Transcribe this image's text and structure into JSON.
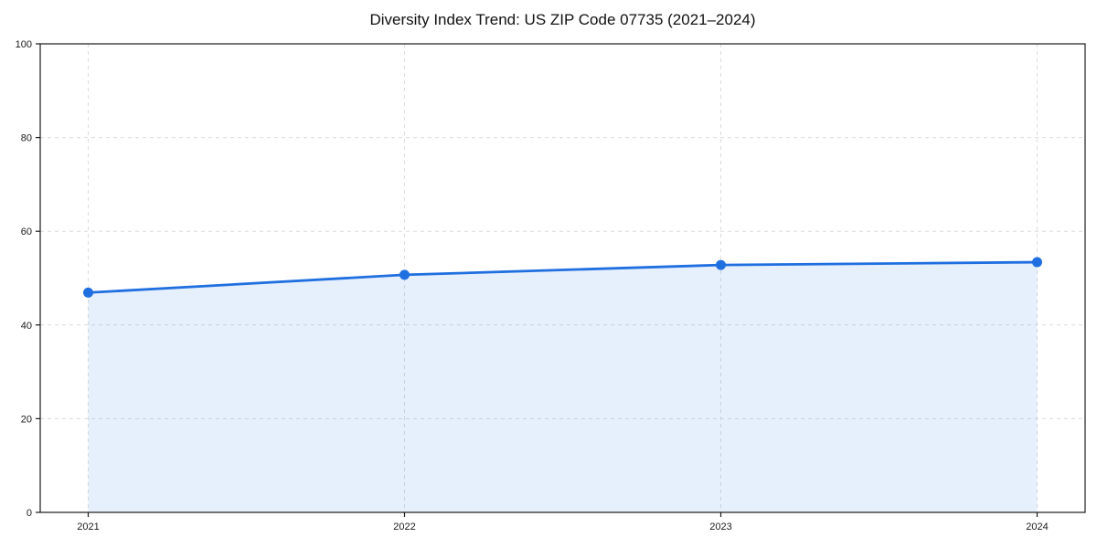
{
  "chart_data": {
    "type": "area",
    "title": "Diversity Index Trend: US ZIP Code 07735 (2021–2024)",
    "x": [
      "2021",
      "2022",
      "2023",
      "2024"
    ],
    "series": [
      {
        "name": "Diversity Index",
        "values": [
          46.9,
          50.7,
          52.8,
          53.4
        ]
      }
    ],
    "xlabel": "",
    "ylabel": "",
    "ylim": [
      0,
      100
    ],
    "yticks": [
      0,
      20,
      40,
      60,
      80,
      100
    ],
    "grid": true,
    "grid_style": "dashed",
    "legend": false,
    "colors": {
      "line": "#1f6fe0",
      "fill": "#1f6fe0",
      "fill_opacity": 0.11,
      "grid": "#dcdcdc",
      "spine": "#1a1a1a",
      "tick_text": "#1a1a1a"
    }
  }
}
